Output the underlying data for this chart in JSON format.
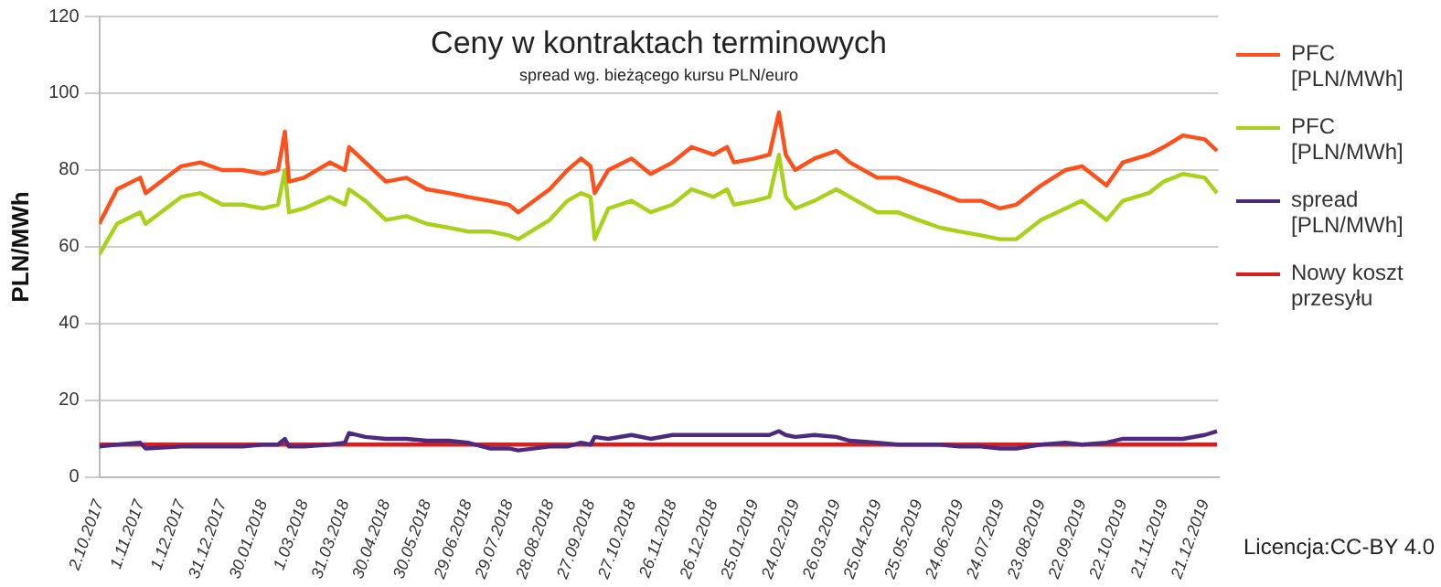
{
  "chart_data": {
    "type": "line",
    "title": "Ceny w kontraktach terminowych",
    "subtitle": "spread wg. bieżącego kursu PLN/euro",
    "ylabel": "PLN/MWh",
    "x": [
      "2017-10-02",
      "2017-10-15",
      "2017-11-01",
      "2017-11-05",
      "2017-12-01",
      "2017-12-15",
      "2017-12-31",
      "2018-01-15",
      "2018-01-30",
      "2018-02-10",
      "2018-02-15",
      "2018-02-18",
      "2018-03-01",
      "2018-03-20",
      "2018-03-31",
      "2018-04-03",
      "2018-04-15",
      "2018-04-30",
      "2018-05-15",
      "2018-05-30",
      "2018-06-15",
      "2018-06-29",
      "2018-07-15",
      "2018-07-29",
      "2018-08-05",
      "2018-08-28",
      "2018-09-10",
      "2018-09-20",
      "2018-09-27",
      "2018-09-30",
      "2018-10-10",
      "2018-10-27",
      "2018-11-10",
      "2018-11-26",
      "2018-12-10",
      "2018-12-26",
      "2019-01-05",
      "2019-01-10",
      "2019-01-25",
      "2019-02-05",
      "2019-02-12",
      "2019-02-17",
      "2019-02-24",
      "2019-03-10",
      "2019-03-26",
      "2019-04-05",
      "2019-04-25",
      "2019-05-10",
      "2019-05-25",
      "2019-06-10",
      "2019-06-24",
      "2019-07-10",
      "2019-07-24",
      "2019-08-05",
      "2019-08-23",
      "2019-09-10",
      "2019-09-22",
      "2019-10-10",
      "2019-10-22",
      "2019-11-10",
      "2019-11-21",
      "2019-12-05",
      "2019-12-21",
      "2019-12-30"
    ],
    "series": [
      {
        "name": "PFC [PLN/MWh]",
        "color": "#ff4f1a",
        "values": [
          66,
          75,
          78,
          74,
          81,
          82,
          80,
          80,
          79,
          80,
          90,
          77,
          78,
          82,
          80,
          86,
          82,
          77,
          78,
          75,
          74,
          73,
          72,
          71,
          69,
          75,
          80,
          83,
          81,
          74,
          80,
          83,
          79,
          82,
          86,
          84,
          86,
          82,
          83,
          84,
          95,
          84,
          80,
          83,
          85,
          82,
          78,
          78,
          76,
          74,
          72,
          72,
          70,
          71,
          76,
          80,
          81,
          76,
          82,
          84,
          86,
          89,
          88,
          85
        ]
      },
      {
        "name": "PFC [PLN/MWh]",
        "color": "#a8d21a",
        "values": [
          58,
          66,
          69,
          66,
          73,
          74,
          71,
          71,
          70,
          71,
          80,
          69,
          70,
          73,
          71,
          75,
          72,
          67,
          68,
          66,
          65,
          64,
          64,
          63,
          62,
          67,
          72,
          74,
          73,
          62,
          70,
          72,
          69,
          71,
          75,
          73,
          75,
          71,
          72,
          73,
          84,
          73,
          70,
          72,
          75,
          73,
          69,
          69,
          67,
          65,
          64,
          63,
          62,
          62,
          67,
          70,
          72,
          67,
          72,
          74,
          77,
          79,
          78,
          74
        ]
      },
      {
        "name": "spread [PLN/MWh]",
        "color": "#4b2a7f",
        "values": [
          8,
          8.5,
          9,
          7.5,
          8,
          8,
          8,
          8,
          8.5,
          8.5,
          10,
          8,
          8,
          8.5,
          9,
          11.5,
          10.5,
          10,
          10,
          9.5,
          9.5,
          9,
          7.5,
          7.5,
          7,
          8,
          8,
          9,
          8.5,
          10.5,
          10,
          11,
          10,
          11,
          11,
          11,
          11,
          11,
          11,
          11,
          12,
          11,
          10.5,
          11,
          10.5,
          9.5,
          9,
          8.5,
          8.5,
          8.5,
          8,
          8,
          7.5,
          7.5,
          8.5,
          9,
          8.5,
          9,
          10,
          10,
          10,
          10,
          11,
          12
        ]
      },
      {
        "name": "Nowy koszt przesyłu",
        "color": "#d42020",
        "x": [
          "2017-10-02",
          "2019-12-30"
        ],
        "values": [
          8.5,
          8.5
        ]
      }
    ],
    "xlim": [
      "2017-10-02",
      "2019-12-31"
    ],
    "xticks": [
      {
        "value": "2017-10-02",
        "label": "2.10.2017"
      },
      {
        "value": "2017-11-01",
        "label": "1.11.2017"
      },
      {
        "value": "2017-12-01",
        "label": "1.12.2017"
      },
      {
        "value": "2017-12-31",
        "label": "31.12.2017"
      },
      {
        "value": "2018-01-30",
        "label": "30.01.2018"
      },
      {
        "value": "2018-03-01",
        "label": "1.03.2018"
      },
      {
        "value": "2018-03-31",
        "label": "31.03.2018"
      },
      {
        "value": "2018-04-30",
        "label": "30.04.2018"
      },
      {
        "value": "2018-05-30",
        "label": "30.05.2018"
      },
      {
        "value": "2018-06-29",
        "label": "29.06.2018"
      },
      {
        "value": "2018-07-29",
        "label": "29.07.2018"
      },
      {
        "value": "2018-08-28",
        "label": "28.08.2018"
      },
      {
        "value": "2018-09-27",
        "label": "27.09.2018"
      },
      {
        "value": "2018-10-27",
        "label": "27.10.2018"
      },
      {
        "value": "2018-11-26",
        "label": "26.11.2018"
      },
      {
        "value": "2018-12-26",
        "label": "26.12.2018"
      },
      {
        "value": "2019-01-25",
        "label": "25.01.2019"
      },
      {
        "value": "2019-02-24",
        "label": "24.02.2019"
      },
      {
        "value": "2019-03-26",
        "label": "26.03.2019"
      },
      {
        "value": "2019-04-25",
        "label": "25.04.2019"
      },
      {
        "value": "2019-05-25",
        "label": "25.05.2019"
      },
      {
        "value": "2019-06-24",
        "label": "24.06.2019"
      },
      {
        "value": "2019-07-24",
        "label": "24.07.2019"
      },
      {
        "value": "2019-08-23",
        "label": "23.08.2019"
      },
      {
        "value": "2019-09-22",
        "label": "22.09.2019"
      },
      {
        "value": "2019-10-22",
        "label": "22.10.2019"
      },
      {
        "value": "2019-11-21",
        "label": "21.11.2019"
      },
      {
        "value": "2019-12-21",
        "label": "21.12.2019"
      }
    ],
    "ylim": [
      0,
      120
    ],
    "yticks": [
      0,
      20,
      40,
      60,
      80,
      100,
      120
    ],
    "grid": "y",
    "legend": "right",
    "marker": "none",
    "line_style": "solid",
    "annotations": [
      "Licencja:CC-BY 4.0"
    ]
  }
}
